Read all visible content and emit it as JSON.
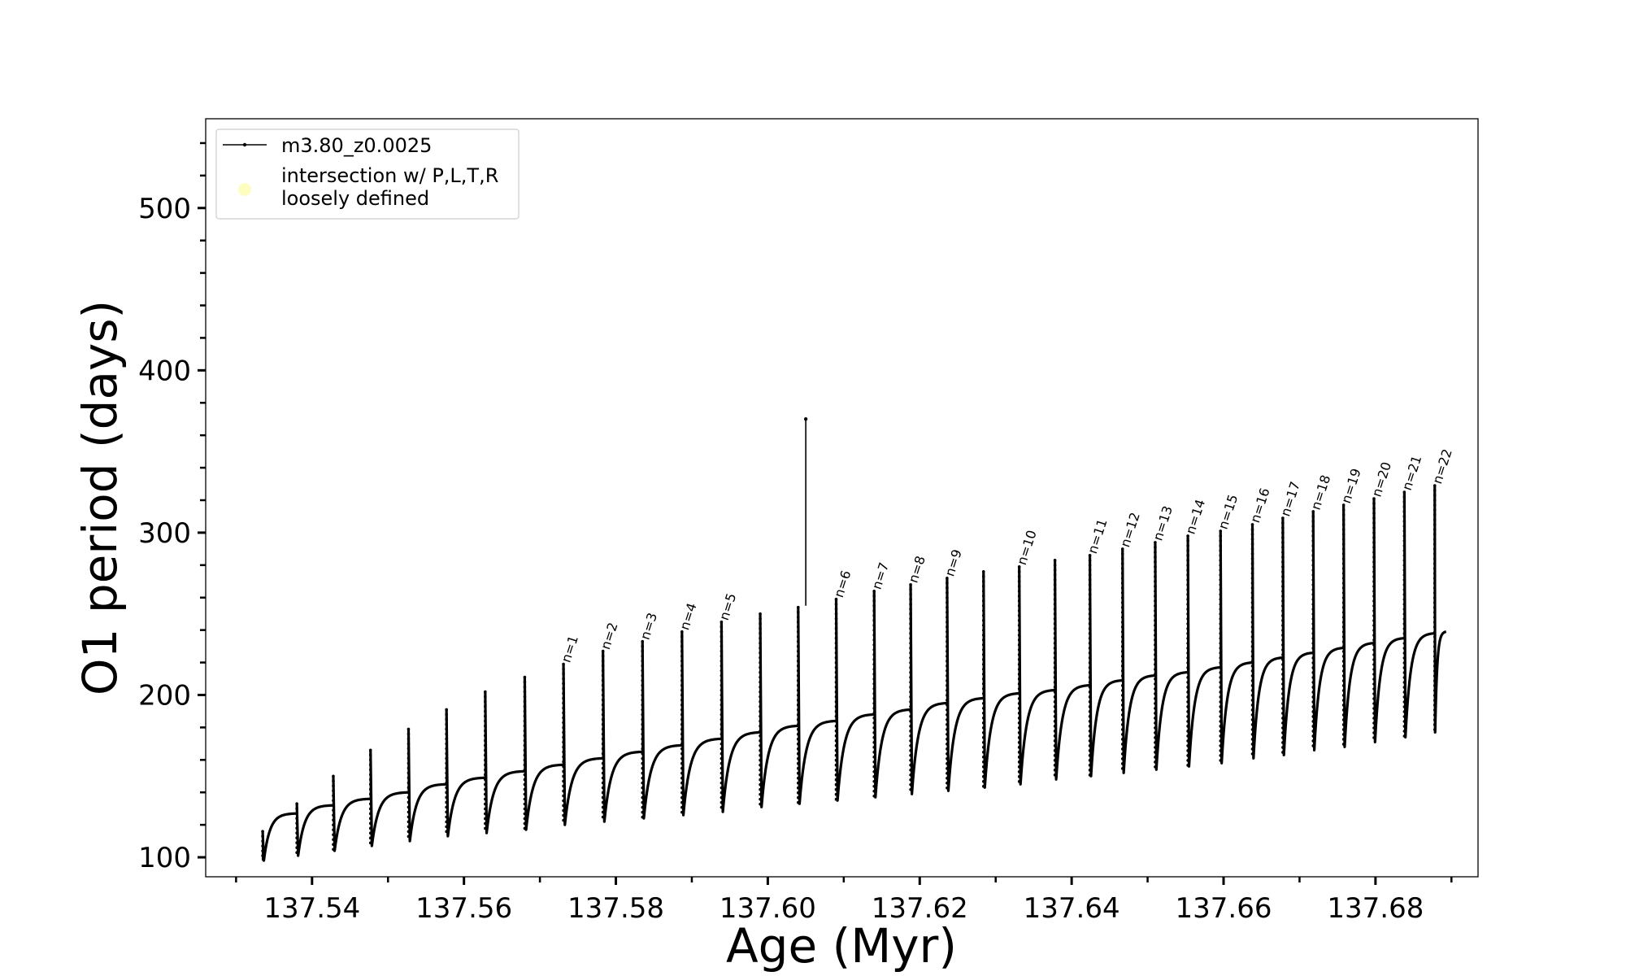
{
  "chart_data": {
    "type": "line",
    "title": "",
    "xlabel": "Age (Myr)",
    "ylabel": "O1 period (days)",
    "xlim": [
      137.526,
      137.6935
    ],
    "ylim": [
      88,
      555
    ],
    "x_major_ticks": [
      137.54,
      137.56,
      137.58,
      137.6,
      137.62,
      137.64,
      137.66,
      137.68
    ],
    "x_tick_labels": [
      "137.54",
      "137.56",
      "137.58",
      "137.60",
      "137.62",
      "137.64",
      "137.66",
      "137.68"
    ],
    "y_major_ticks": [
      100,
      200,
      300,
      400,
      500
    ],
    "y_tick_labels": [
      "100",
      "200",
      "300",
      "400",
      "500"
    ],
    "grid": false,
    "legend_position": "top-left",
    "colors": {
      "series": "#000000",
      "intersection_marker": "#fdfdc2"
    },
    "series": [
      {
        "name": "m3.80_z0.0025",
        "style": "line with small dot markers",
        "cycles": [
          {
            "x_start": 137.5335,
            "x_end": 137.538,
            "spike": 116,
            "dip": 98,
            "plateau": 127
          },
          {
            "x_start": 137.538,
            "x_end": 137.5428,
            "spike": 133,
            "dip": 101,
            "plateau": 132
          },
          {
            "x_start": 137.5428,
            "x_end": 137.5477,
            "spike": 150,
            "dip": 104,
            "plateau": 136
          },
          {
            "x_start": 137.5477,
            "x_end": 137.5527,
            "spike": 166,
            "dip": 107,
            "plateau": 140
          },
          {
            "x_start": 137.5527,
            "x_end": 137.5577,
            "spike": 179,
            "dip": 110,
            "plateau": 145
          },
          {
            "x_start": 137.5577,
            "x_end": 137.5628,
            "spike": 191,
            "dip": 113,
            "plateau": 149
          },
          {
            "x_start": 137.5628,
            "x_end": 137.568,
            "spike": 202,
            "dip": 115,
            "plateau": 153
          },
          {
            "x_start": 137.568,
            "x_end": 137.5731,
            "spike": 211,
            "dip": 117,
            "plateau": 157
          },
          {
            "x_start": 137.5731,
            "x_end": 137.5783,
            "spike": 219,
            "dip": 120,
            "plateau": 161
          },
          {
            "x_start": 137.5783,
            "x_end": 137.5835,
            "spike": 227,
            "dip": 122,
            "plateau": 165
          },
          {
            "x_start": 137.5835,
            "x_end": 137.5887,
            "spike": 233,
            "dip": 124,
            "plateau": 169
          },
          {
            "x_start": 137.5887,
            "x_end": 137.5939,
            "spike": 239,
            "dip": 126,
            "plateau": 173
          },
          {
            "x_start": 137.5939,
            "x_end": 137.599,
            "spike": 245,
            "dip": 128,
            "plateau": 177
          },
          {
            "x_start": 137.599,
            "x_end": 137.604,
            "spike": 250,
            "dip": 131,
            "plateau": 181
          },
          {
            "x_start": 137.604,
            "x_end": 137.609,
            "spike": 254,
            "dip": 133,
            "plateau": 184
          },
          {
            "x_start": 137.609,
            "x_end": 137.614,
            "spike": 259,
            "dip": 135,
            "plateau": 188
          },
          {
            "x_start": 137.614,
            "x_end": 137.6188,
            "spike": 264,
            "dip": 137,
            "plateau": 191
          },
          {
            "x_start": 137.6188,
            "x_end": 137.6236,
            "spike": 268,
            "dip": 139,
            "plateau": 195
          },
          {
            "x_start": 137.6236,
            "x_end": 137.6284,
            "spike": 272,
            "dip": 141,
            "plateau": 198
          },
          {
            "x_start": 137.6284,
            "x_end": 137.6331,
            "spike": 276,
            "dip": 143,
            "plateau": 201
          },
          {
            "x_start": 137.6331,
            "x_end": 137.6378,
            "spike": 279,
            "dip": 145,
            "plateau": 203
          },
          {
            "x_start": 137.6378,
            "x_end": 137.6424,
            "spike": 283,
            "dip": 148,
            "plateau": 206
          },
          {
            "x_start": 137.6424,
            "x_end": 137.6467,
            "spike": 286,
            "dip": 150,
            "plateau": 209
          },
          {
            "x_start": 137.6467,
            "x_end": 137.651,
            "spike": 290,
            "dip": 152,
            "plateau": 212
          },
          {
            "x_start": 137.651,
            "x_end": 137.6553,
            "spike": 294,
            "dip": 154,
            "plateau": 214
          },
          {
            "x_start": 137.6553,
            "x_end": 137.6596,
            "spike": 298,
            "dip": 156,
            "plateau": 217
          },
          {
            "x_start": 137.6596,
            "x_end": 137.6638,
            "spike": 301,
            "dip": 158,
            "plateau": 220
          },
          {
            "x_start": 137.6638,
            "x_end": 137.6678,
            "spike": 305,
            "dip": 161,
            "plateau": 223
          },
          {
            "x_start": 137.6678,
            "x_end": 137.6718,
            "spike": 309,
            "dip": 163,
            "plateau": 226
          },
          {
            "x_start": 137.6718,
            "x_end": 137.6758,
            "spike": 313,
            "dip": 166,
            "plateau": 229
          },
          {
            "x_start": 137.6758,
            "x_end": 137.6798,
            "spike": 317,
            "dip": 168,
            "plateau": 232
          },
          {
            "x_start": 137.6798,
            "x_end": 137.6838,
            "spike": 321,
            "dip": 171,
            "plateau": 235
          },
          {
            "x_start": 137.6838,
            "x_end": 137.6878,
            "spike": 325,
            "dip": 174,
            "plateau": 238
          },
          {
            "x_start": 137.6878,
            "x_end": 137.6893,
            "spike": 329,
            "dip": 177,
            "plateau": 239
          }
        ],
        "outlier_spike": {
          "x": 137.605,
          "y": 370
        }
      },
      {
        "name": "intersection w/ P,L,T,R loosely defined",
        "style": "marker",
        "points": []
      }
    ],
    "legend": {
      "entries": [
        {
          "label": "m3.80_z0.0025",
          "marker": "line"
        },
        {
          "label_lines": [
            "intersection w/ P,L,T,R",
            "loosely defined"
          ],
          "marker": "dot"
        }
      ]
    },
    "annotations": [
      {
        "text": "n=1",
        "x": 137.5736,
        "y": 220
      },
      {
        "text": "n=2",
        "x": 137.5788,
        "y": 228
      },
      {
        "text": "n=3",
        "x": 137.584,
        "y": 234
      },
      {
        "text": "n=4",
        "x": 137.5892,
        "y": 240
      },
      {
        "text": "n=5",
        "x": 137.5944,
        "y": 246
      },
      {
        "text": "n=6",
        "x": 137.6095,
        "y": 260
      },
      {
        "text": "n=7",
        "x": 137.6145,
        "y": 265
      },
      {
        "text": "n=8",
        "x": 137.6193,
        "y": 269
      },
      {
        "text": "n=9",
        "x": 137.6241,
        "y": 273
      },
      {
        "text": "n=10",
        "x": 137.6336,
        "y": 280
      },
      {
        "text": "n=11",
        "x": 137.6429,
        "y": 287
      },
      {
        "text": "n=12",
        "x": 137.6472,
        "y": 291
      },
      {
        "text": "n=13",
        "x": 137.6515,
        "y": 295
      },
      {
        "text": "n=14",
        "x": 137.6558,
        "y": 299
      },
      {
        "text": "n=15",
        "x": 137.6601,
        "y": 302
      },
      {
        "text": "n=16",
        "x": 137.6643,
        "y": 306
      },
      {
        "text": "n=17",
        "x": 137.6683,
        "y": 310
      },
      {
        "text": "n=18",
        "x": 137.6723,
        "y": 314
      },
      {
        "text": "n=19",
        "x": 137.6763,
        "y": 318
      },
      {
        "text": "n=20",
        "x": 137.6803,
        "y": 322
      },
      {
        "text": "n=21",
        "x": 137.6843,
        "y": 326
      },
      {
        "text": "n=22",
        "x": 137.6883,
        "y": 330
      }
    ]
  }
}
